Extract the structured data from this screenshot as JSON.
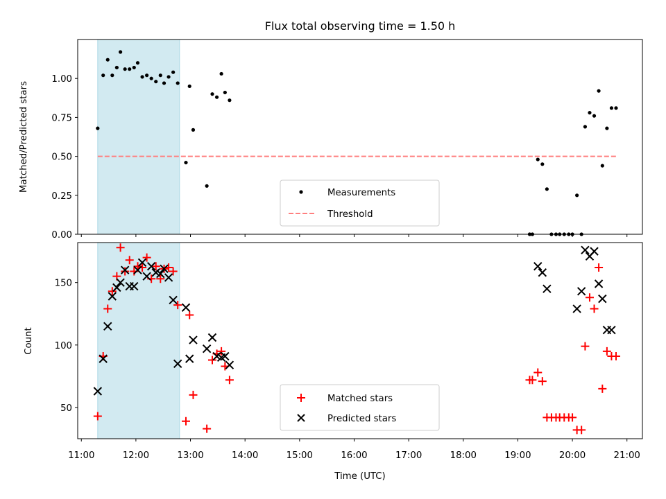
{
  "title": "Flux total observing time = 1.50 h",
  "shade": {
    "start": "11:18",
    "end": "12:48",
    "color": "#add8e6"
  },
  "colors": {
    "measure": "#000000",
    "threshold": "#ff7f7f",
    "matched": "#ff0000",
    "predicted": "#000000"
  },
  "chart_data": [
    {
      "type": "scatter",
      "ylabel": "Matched/Predicted stars",
      "ylim": [
        0,
        1.25
      ],
      "yticks": [
        "0.00",
        "0.25",
        "0.50",
        "0.75",
        "1.00"
      ],
      "xlim": [
        "10:56",
        "21:17"
      ],
      "legend": {
        "placement": "lower center",
        "entries": [
          "Measurements",
          "Threshold"
        ]
      },
      "threshold": {
        "name": "Threshold",
        "value": 0.5,
        "x": [
          "11:18",
          "20:48"
        ]
      },
      "series": [
        {
          "name": "Measurements",
          "x": [
            "11:18",
            "11:24",
            "11:29",
            "11:34",
            "11:39",
            "11:43",
            "11:48",
            "11:53",
            "11:58",
            "12:02",
            "12:07",
            "12:12",
            "12:17",
            "12:22",
            "12:27",
            "12:31",
            "12:36",
            "12:41",
            "12:46",
            "12:55",
            "12:59",
            "13:03",
            "13:18",
            "13:24",
            "13:29",
            "13:34",
            "13:38",
            "13:43",
            "19:13",
            "19:16",
            "19:22",
            "19:27",
            "19:32",
            "19:37",
            "19:42",
            "19:46",
            "19:51",
            "19:56",
            "20:00",
            "20:05",
            "20:10",
            "20:14",
            "20:19",
            "20:24",
            "20:29",
            "20:33",
            "20:38",
            "20:43",
            "20:48"
          ],
          "y": [
            0.68,
            1.02,
            1.12,
            1.02,
            1.07,
            1.17,
            1.06,
            1.06,
            1.07,
            1.1,
            1.01,
            1.02,
            1.0,
            0.98,
            1.02,
            0.97,
            1.01,
            1.04,
            0.97,
            0.46,
            0.95,
            0.67,
            0.31,
            0.9,
            0.88,
            1.03,
            0.91,
            0.86,
            0.0,
            0.0,
            0.48,
            0.45,
            0.29,
            0.0,
            0.0,
            0.0,
            0.0,
            0.0,
            0.0,
            0.25,
            0.0,
            0.69,
            0.78,
            0.76,
            0.92,
            0.44,
            0.68,
            0.81,
            0.81
          ]
        }
      ]
    },
    {
      "type": "scatter",
      "xlabel": "Time (UTC)",
      "ylabel": "Count",
      "ylim": [
        25,
        182
      ],
      "yticks": [
        "50",
        "100",
        "150"
      ],
      "xlim": [
        "10:56",
        "21:17"
      ],
      "xticks": [
        "11:00",
        "12:00",
        "13:00",
        "14:00",
        "15:00",
        "16:00",
        "17:00",
        "18:00",
        "19:00",
        "20:00",
        "21:00"
      ],
      "legend": {
        "placement": "lower center",
        "entries": [
          "Matched stars",
          "Predicted stars"
        ]
      },
      "series": [
        {
          "name": "Matched stars",
          "x": [
            "11:18",
            "11:24",
            "11:29",
            "11:34",
            "11:39",
            "11:43",
            "11:48",
            "11:53",
            "11:58",
            "12:02",
            "12:07",
            "12:12",
            "12:17",
            "12:22",
            "12:27",
            "12:31",
            "12:36",
            "12:41",
            "12:46",
            "12:55",
            "12:59",
            "13:03",
            "13:18",
            "13:24",
            "13:29",
            "13:34",
            "13:38",
            "13:43",
            "19:13",
            "19:16",
            "19:22",
            "19:27",
            "19:32",
            "19:37",
            "19:42",
            "19:46",
            "19:51",
            "19:56",
            "20:00",
            "20:05",
            "20:10",
            "20:14",
            "20:19",
            "20:24",
            "20:29",
            "20:33",
            "20:38",
            "20:43",
            "20:48"
          ],
          "y": [
            43,
            91,
            129,
            143,
            155,
            178,
            159,
            168,
            159,
            163,
            162,
            170,
            153,
            163,
            153,
            161,
            162,
            159,
            132,
            39,
            124,
            60,
            33,
            88,
            93,
            95,
            83,
            72,
            72,
            72,
            78,
            71,
            42,
            42,
            42,
            42,
            42,
            42,
            42,
            32,
            32,
            99,
            138,
            129,
            162,
            65,
            95,
            91,
            91
          ]
        },
        {
          "name": "Predicted stars",
          "x": [
            "11:18",
            "11:24",
            "11:29",
            "11:34",
            "11:39",
            "11:43",
            "11:48",
            "11:53",
            "11:58",
            "12:02",
            "12:07",
            "12:12",
            "12:17",
            "12:22",
            "12:27",
            "12:31",
            "12:36",
            "12:41",
            "12:46",
            "12:55",
            "12:59",
            "13:03",
            "13:18",
            "13:24",
            "13:29",
            "13:34",
            "13:38",
            "13:43",
            "19:22",
            "19:27",
            "19:32",
            "20:05",
            "20:10",
            "20:14",
            "20:19",
            "20:24",
            "20:29",
            "20:33",
            "20:38",
            "20:43"
          ],
          "y": [
            63,
            89,
            115,
            139,
            146,
            150,
            160,
            147,
            147,
            160,
            166,
            155,
            163,
            158,
            157,
            161,
            154,
            136,
            85,
            130,
            89,
            104,
            97,
            106,
            91,
            90,
            91,
            84,
            163,
            158,
            145,
            129,
            143,
            176,
            171,
            175,
            149,
            137,
            112,
            112
          ]
        }
      ]
    }
  ]
}
